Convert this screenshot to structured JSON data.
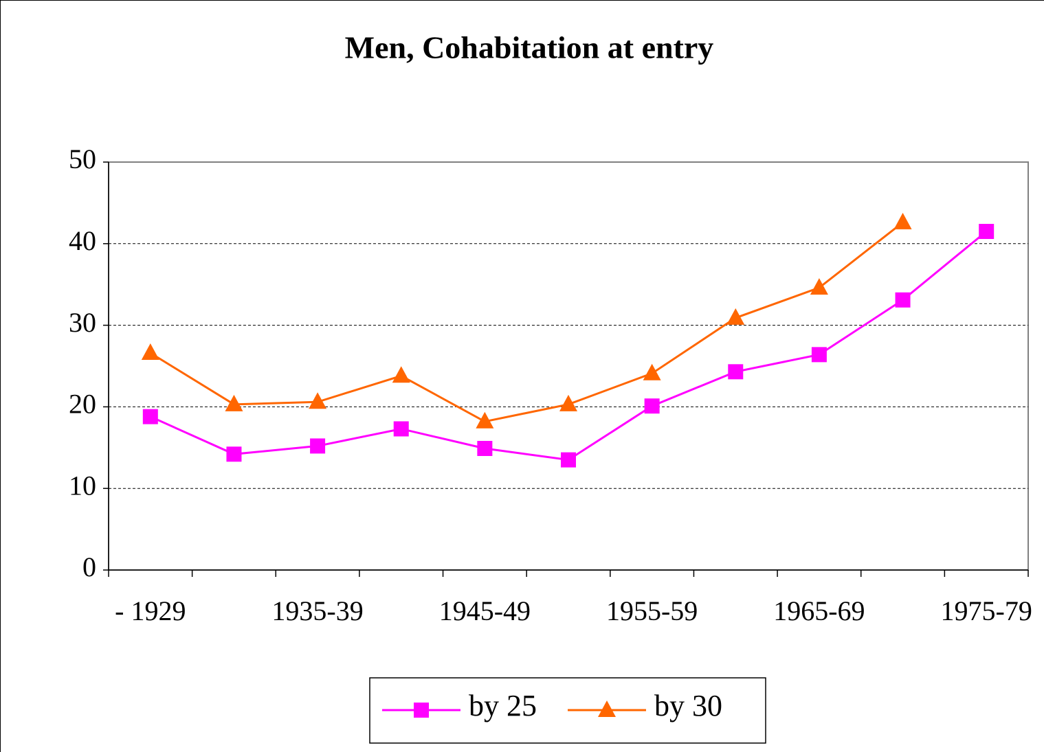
{
  "chart_data": {
    "type": "line",
    "title": "Men, Cohabitation at entry",
    "categories": [
      "- 1929",
      null,
      "1935-39",
      null,
      "1945-49",
      null,
      "1955-59",
      null,
      "1965-69",
      null,
      "1975-79"
    ],
    "series": [
      {
        "name": "by 25",
        "color": "#ff00ff",
        "marker": "square",
        "values": [
          18.8,
          14.2,
          15.2,
          17.3,
          14.9,
          13.5,
          20.1,
          24.3,
          26.4,
          33.1,
          41.5
        ]
      },
      {
        "name": "by 30",
        "color": "#ff6600",
        "marker": "triangle",
        "values": [
          26.6,
          20.3,
          20.6,
          23.8,
          18.2,
          20.3,
          24.1,
          30.9,
          34.6,
          42.6,
          null
        ]
      }
    ],
    "ylim": [
      0,
      50
    ],
    "yticks": [
      0,
      10,
      20,
      30,
      40,
      50
    ],
    "grid": true,
    "legend": "bottom"
  }
}
